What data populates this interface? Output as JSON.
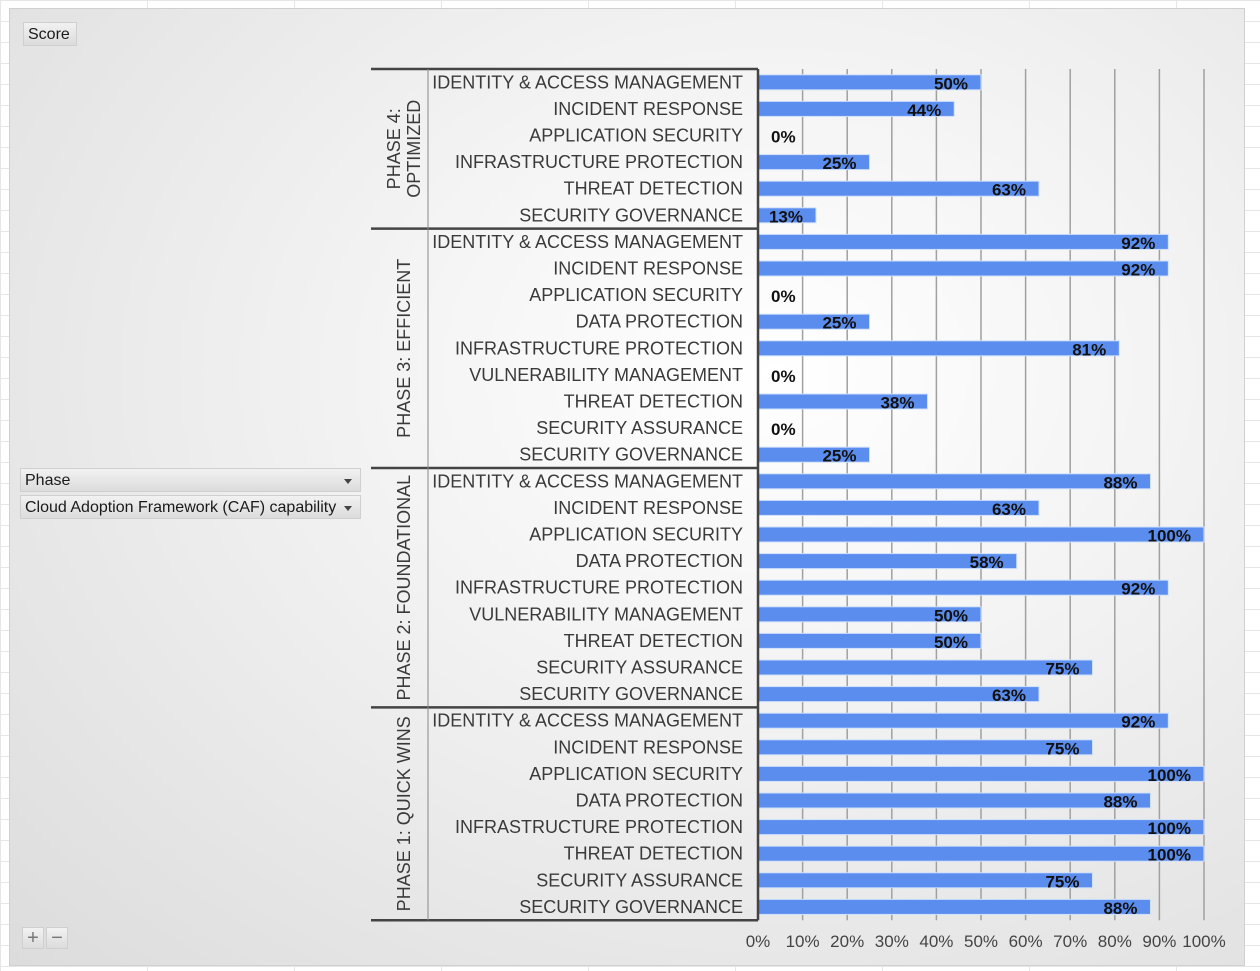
{
  "field_buttons": {
    "score": "Score",
    "phase": "Phase",
    "caf": "Cloud Adoption Framework (CAF) capability"
  },
  "zoom": {
    "plus": "+",
    "minus": "−"
  },
  "colors": {
    "bar": "#5b8def",
    "bar_edge": "#cfe0fb",
    "axis": "#444444",
    "grid": "#a0a0a0"
  },
  "chart_data": {
    "type": "bar",
    "orientation": "horizontal",
    "title": "",
    "xlabel": "",
    "ylabel": "",
    "xlim": [
      0,
      1
    ],
    "x_ticks": [
      "0%",
      "10%",
      "20%",
      "30%",
      "40%",
      "50%",
      "60%",
      "70%",
      "80%",
      "90%",
      "100%"
    ],
    "grid": true,
    "groups": [
      {
        "phase": "PHASE 4:|OPTIMIZED",
        "categories": [
          "IDENTITY & ACCESS MANAGEMENT",
          "INCIDENT RESPONSE",
          "APPLICATION SECURITY",
          "INFRASTRUCTURE PROTECTION",
          "THREAT DETECTION",
          "SECURITY GOVERNANCE"
        ],
        "values": [
          0.5,
          0.44,
          0.0,
          0.25,
          0.63,
          0.13
        ],
        "labels": [
          "50%",
          "44%",
          "0%",
          "25%",
          "63%",
          "13%"
        ]
      },
      {
        "phase": "PHASE 3: EFFICIENT",
        "categories": [
          "IDENTITY & ACCESS MANAGEMENT",
          "INCIDENT RESPONSE",
          "APPLICATION SECURITY",
          "DATA PROTECTION",
          "INFRASTRUCTURE PROTECTION",
          "VULNERABILITY MANAGEMENT",
          "THREAT DETECTION",
          "SECURITY ASSURANCE",
          "SECURITY GOVERNANCE"
        ],
        "values": [
          0.92,
          0.92,
          0.0,
          0.25,
          0.81,
          0.0,
          0.38,
          0.0,
          0.25
        ],
        "labels": [
          "92%",
          "92%",
          "0%",
          "25%",
          "81%",
          "0%",
          "38%",
          "0%",
          "25%"
        ]
      },
      {
        "phase": "PHASE 2: FOUNDATIONAL",
        "categories": [
          "IDENTITY & ACCESS MANAGEMENT",
          "INCIDENT RESPONSE",
          "APPLICATION SECURITY",
          "DATA PROTECTION",
          "INFRASTRUCTURE PROTECTION",
          "VULNERABILITY MANAGEMENT",
          "THREAT DETECTION",
          "SECURITY ASSURANCE",
          "SECURITY GOVERNANCE"
        ],
        "values": [
          0.88,
          0.63,
          1.0,
          0.58,
          0.92,
          0.5,
          0.5,
          0.75,
          0.63
        ],
        "labels": [
          "88%",
          "63%",
          "100%",
          "58%",
          "92%",
          "50%",
          "50%",
          "75%",
          "63%"
        ]
      },
      {
        "phase": "PHASE 1: QUICK WINS",
        "categories": [
          "IDENTITY & ACCESS MANAGEMENT",
          "INCIDENT RESPONSE",
          "APPLICATION SECURITY",
          "DATA PROTECTION",
          "INFRASTRUCTURE PROTECTION",
          "THREAT DETECTION",
          "SECURITY ASSURANCE",
          "SECURITY GOVERNANCE"
        ],
        "values": [
          0.92,
          0.75,
          1.0,
          0.88,
          1.0,
          1.0,
          0.75,
          0.88
        ],
        "labels": [
          "92%",
          "75%",
          "100%",
          "88%",
          "100%",
          "100%",
          "75%",
          "88%"
        ]
      }
    ]
  }
}
